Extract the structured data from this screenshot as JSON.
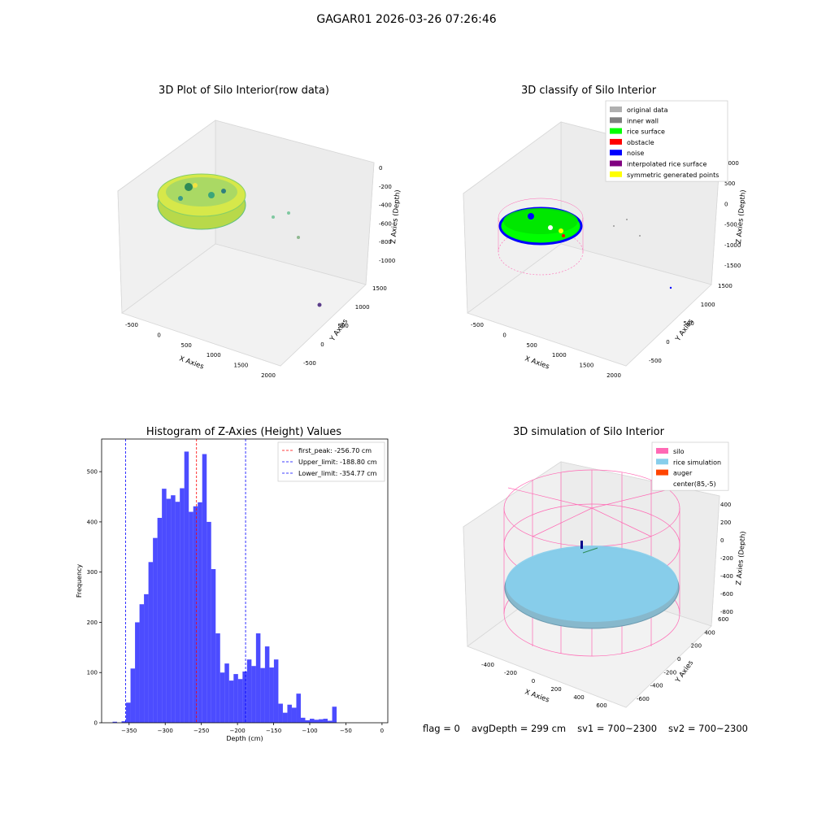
{
  "suptitle": "GAGAR01 2026-03-26 07:26:46",
  "panels": {
    "raw": {
      "title": "3D Plot of Silo Interior(row data)",
      "xlabel": "X Axies",
      "ylabel": "Y Axies",
      "zlabel": "Z Axies (Depth)",
      "xticks": [
        "-500",
        "0",
        "500",
        "1000",
        "1500",
        "2000"
      ],
      "yticks": [
        "-500",
        "0",
        "500",
        "1000",
        "1500"
      ],
      "zticks": [
        "0",
        "-200",
        "-400",
        "-600",
        "-800",
        "-1000"
      ]
    },
    "classify": {
      "title": "3D classify of Silo Interior",
      "xlabel": "X Axies",
      "ylabel": "Y Axies",
      "zlabel": "Z Axies (Depth)",
      "xticks": [
        "-500",
        "0",
        "500",
        "1000",
        "1500",
        "2000"
      ],
      "yticks": [
        "-500",
        "0",
        "500",
        "1000",
        "1500"
      ],
      "zticks": [
        "1000",
        "500",
        "0",
        "-500",
        "-1000",
        "-1500"
      ],
      "legend": [
        {
          "label": "original data",
          "color": "#b0b0b0"
        },
        {
          "label": "inner wall",
          "color": "#808080"
        },
        {
          "label": "rice surface",
          "color": "#00ff00"
        },
        {
          "label": "obstacle",
          "color": "#ff0000"
        },
        {
          "label": "noise",
          "color": "#0000ff"
        },
        {
          "label": "interpolated rice surface",
          "color": "#800080"
        },
        {
          "label": "symmetric generated points",
          "color": "#ffff00"
        }
      ]
    },
    "simulation": {
      "title": "3D simulation of Silo Interior",
      "xlabel": "X Axies",
      "ylabel": "Y Axies",
      "zlabel": "Z Axies (Depth)",
      "xticks": [
        "-400",
        "-200",
        "0",
        "200",
        "400",
        "600"
      ],
      "yticks": [
        "-600",
        "-400",
        "-200",
        "0",
        "200",
        "400",
        "600"
      ],
      "zticks": [
        "400",
        "200",
        "0",
        "-200",
        "-400",
        "-600",
        "-800"
      ],
      "legend": [
        {
          "label": "silo",
          "color": "#ff69b4"
        },
        {
          "label": "rice simulation",
          "color": "#87ceeb"
        },
        {
          "label": "auger",
          "color": "#ff4500"
        },
        {
          "label": "center(85,-5)",
          "color": ""
        }
      ]
    }
  },
  "footer": {
    "flag": "flag = 0",
    "avg_depth": "avgDepth = 299 cm",
    "sv1": "sv1 = 700~2300",
    "sv2": "sv2 = 700~2300"
  },
  "chart_data": {
    "type": "bar",
    "title": "Histogram of Z-Axies (Height) Values",
    "xlabel": "Depth (cm)",
    "ylabel": "Frequency",
    "xlim": [
      -388,
      8
    ],
    "ylim": [
      0,
      565
    ],
    "xticks": [
      -350,
      -300,
      -250,
      -200,
      -150,
      -100,
      -50,
      0
    ],
    "yticks": [
      0,
      100,
      200,
      300,
      400,
      500
    ],
    "bar_color": "#0000ff",
    "bin_width": 6.2,
    "bins": [
      {
        "x": -372.8,
        "y": 2
      },
      {
        "x": -366.6,
        "y": 0
      },
      {
        "x": -360.4,
        "y": 3
      },
      {
        "x": -354.2,
        "y": 40
      },
      {
        "x": -348.0,
        "y": 108
      },
      {
        "x": -341.8,
        "y": 200
      },
      {
        "x": -335.6,
        "y": 236
      },
      {
        "x": -329.4,
        "y": 256
      },
      {
        "x": -323.2,
        "y": 320
      },
      {
        "x": -317.0,
        "y": 368
      },
      {
        "x": -310.8,
        "y": 408
      },
      {
        "x": -304.6,
        "y": 466
      },
      {
        "x": -298.4,
        "y": 446
      },
      {
        "x": -292.2,
        "y": 453
      },
      {
        "x": -286.0,
        "y": 440
      },
      {
        "x": -279.8,
        "y": 467
      },
      {
        "x": -273.6,
        "y": 540
      },
      {
        "x": -267.4,
        "y": 420
      },
      {
        "x": -261.2,
        "y": 431
      },
      {
        "x": -255.0,
        "y": 439
      },
      {
        "x": -248.8,
        "y": 535
      },
      {
        "x": -242.6,
        "y": 400
      },
      {
        "x": -236.4,
        "y": 306
      },
      {
        "x": -230.2,
        "y": 178
      },
      {
        "x": -224.0,
        "y": 100
      },
      {
        "x": -217.8,
        "y": 118
      },
      {
        "x": -211.6,
        "y": 84
      },
      {
        "x": -205.4,
        "y": 97
      },
      {
        "x": -199.2,
        "y": 87
      },
      {
        "x": -193.0,
        "y": 102
      },
      {
        "x": -186.8,
        "y": 126
      },
      {
        "x": -180.6,
        "y": 113
      },
      {
        "x": -174.4,
        "y": 178
      },
      {
        "x": -168.2,
        "y": 109
      },
      {
        "x": -162.0,
        "y": 152
      },
      {
        "x": -155.8,
        "y": 110
      },
      {
        "x": -149.6,
        "y": 126
      },
      {
        "x": -143.4,
        "y": 38
      },
      {
        "x": -137.2,
        "y": 20
      },
      {
        "x": -131.0,
        "y": 36
      },
      {
        "x": -124.8,
        "y": 30
      },
      {
        "x": -118.6,
        "y": 58
      },
      {
        "x": -112.4,
        "y": 10
      },
      {
        "x": -106.2,
        "y": 5
      },
      {
        "x": -100.0,
        "y": 8
      },
      {
        "x": -93.8,
        "y": 6
      },
      {
        "x": -87.6,
        "y": 7
      },
      {
        "x": -81.4,
        "y": 8
      },
      {
        "x": -75.2,
        "y": 4
      },
      {
        "x": -69.0,
        "y": 32
      }
    ],
    "vlines": [
      {
        "label": "first_peak: -256.70 cm",
        "x": -256.7,
        "color": "#ff0000"
      },
      {
        "label": "Upper_limit: -188.80 cm",
        "x": -188.8,
        "color": "#0000ff"
      },
      {
        "label": "Lower_limit: -354.77 cm",
        "x": -354.77,
        "color": "#0000ff"
      }
    ]
  }
}
